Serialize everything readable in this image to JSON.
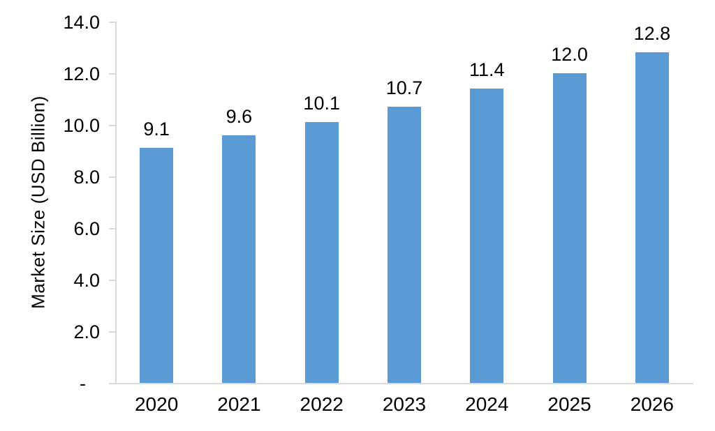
{
  "chart_data": {
    "type": "bar",
    "title": "",
    "xlabel": "",
    "ylabel": "Market Size (USD Billion)",
    "categories": [
      "2020",
      "2021",
      "2022",
      "2023",
      "2024",
      "2025",
      "2026"
    ],
    "values": [
      9.1,
      9.6,
      10.1,
      10.7,
      11.4,
      12.0,
      12.8
    ],
    "data_labels": [
      "9.1",
      "9.6",
      "10.1",
      "10.7",
      "11.4",
      "12.0",
      "12.8"
    ],
    "ylim": [
      0,
      14
    ],
    "y_ticks": [
      {
        "value": 14,
        "label": "14.0"
      },
      {
        "value": 12,
        "label": "12.0"
      },
      {
        "value": 10,
        "label": "10.0"
      },
      {
        "value": 8,
        "label": "8.0"
      },
      {
        "value": 6,
        "label": "6.0"
      },
      {
        "value": 4,
        "label": "4.0"
      },
      {
        "value": 2,
        "label": "2.0"
      },
      {
        "value": 0,
        "label": "-"
      }
    ],
    "grid": false,
    "legend": "none",
    "colors": {
      "bar": "#5B9BD5",
      "axis": "#D9D9D9",
      "text": "#000000",
      "background": "#FFFFFF"
    }
  }
}
